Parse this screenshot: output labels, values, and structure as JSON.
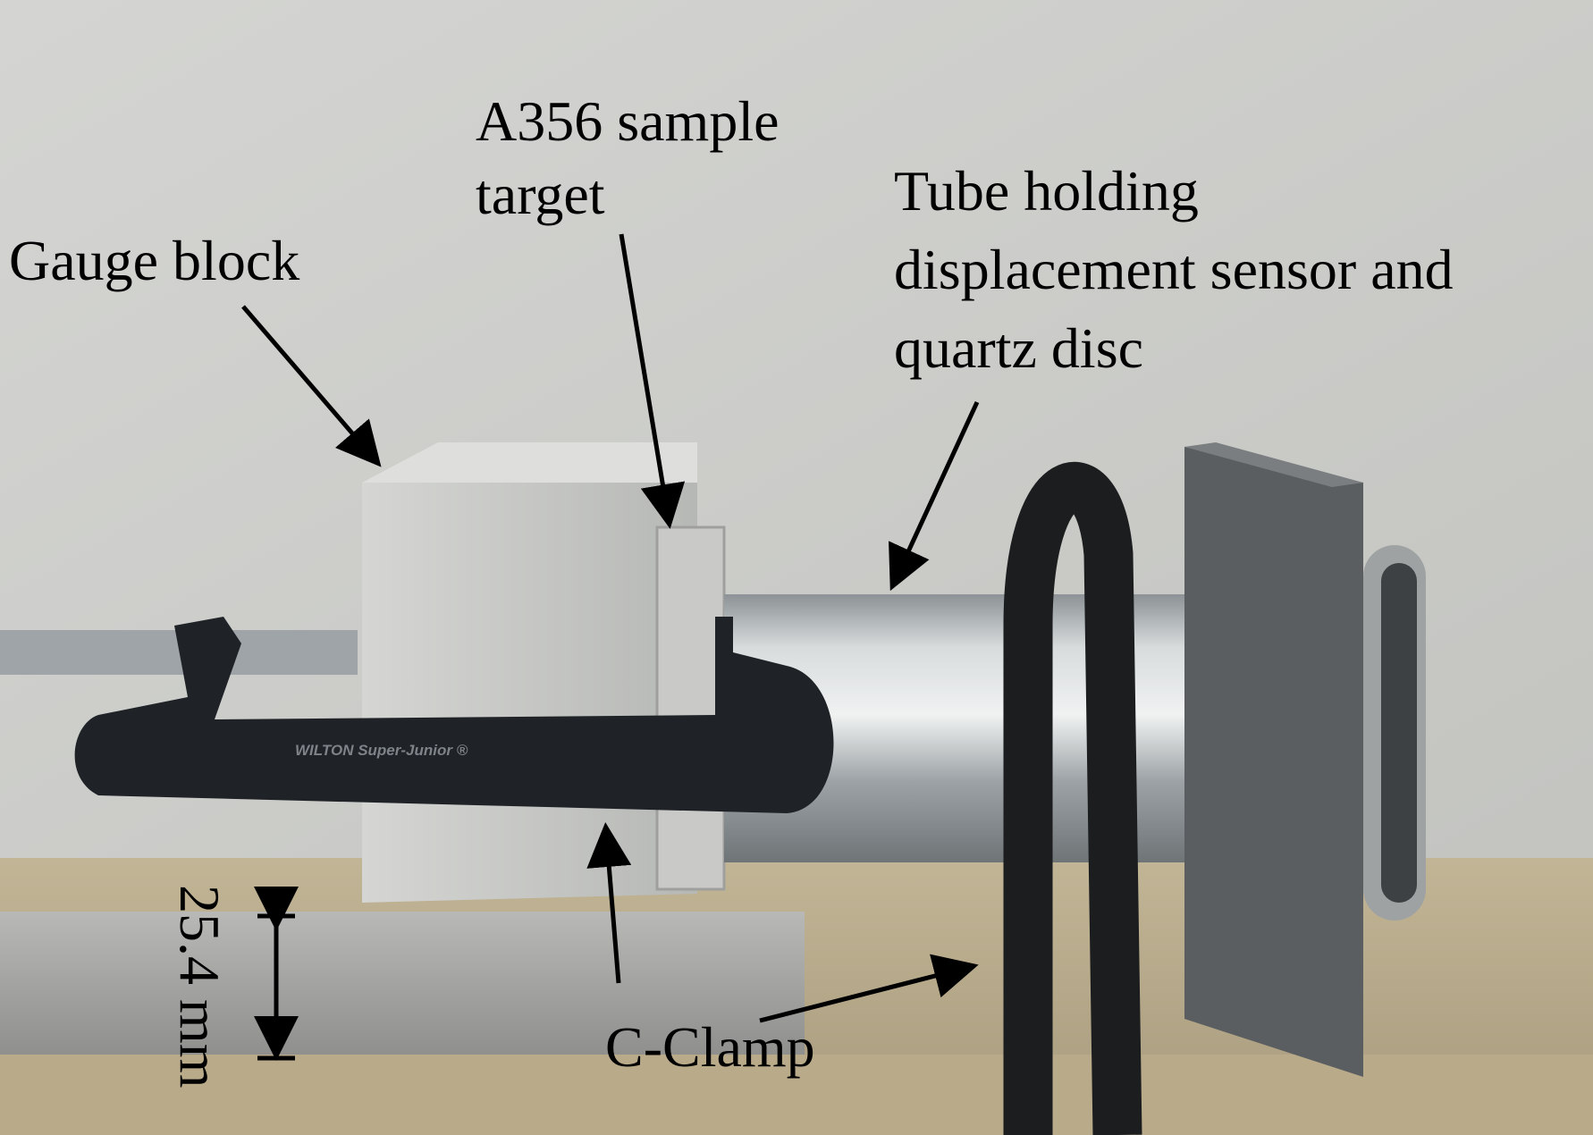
{
  "figure": {
    "labels": {
      "gauge_block": "Gauge block",
      "sample_target_line1": "A356 sample",
      "sample_target_line2": "target",
      "tube_line1": "Tube holding",
      "tube_line2": "displacement sensor and",
      "tube_line3": "quartz disc",
      "c_clamp": "C-Clamp",
      "scale": "25.4 mm"
    },
    "clamp_text": "WILTON Super-Junior ®",
    "colors": {
      "wall": "#cfd0cc",
      "floor": "#b9ab8e",
      "aluminum": "#c6c8c4",
      "clamp": "#1e2226",
      "tube": "#b6bbbd",
      "plate": "#575a5c",
      "label_text": "#000000"
    }
  }
}
